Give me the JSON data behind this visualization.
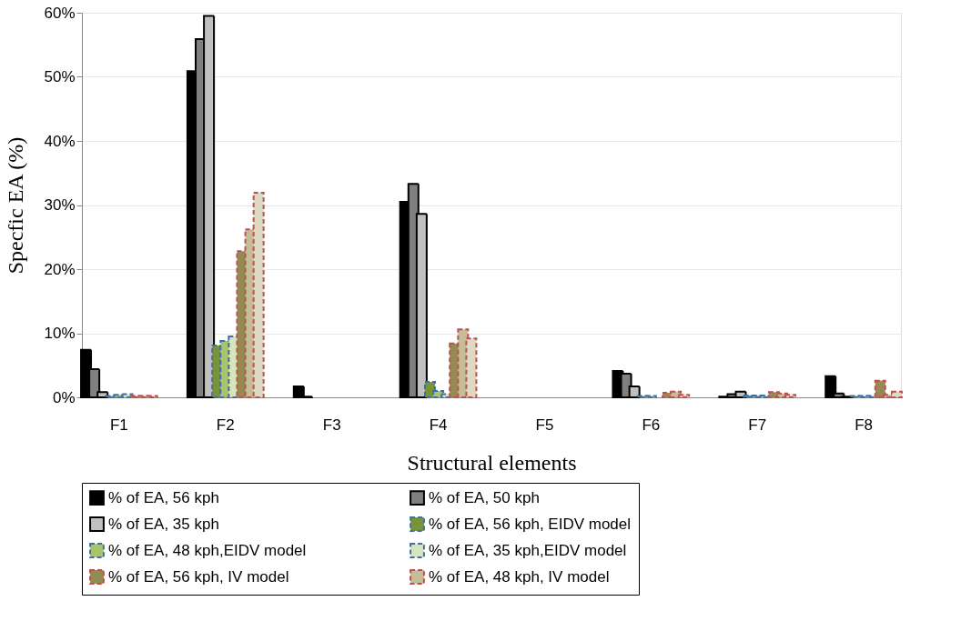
{
  "chart_data": {
    "type": "bar",
    "xlabel": "Structural elements",
    "ylabel": "Specfic EA (%)",
    "categories": [
      "F1",
      "F2",
      "F3",
      "F4",
      "F5",
      "F6",
      "F7",
      "F8"
    ],
    "series": [
      {
        "name": "% of EA, 56 kph",
        "color": "#000000",
        "line_style": "solid",
        "values": [
          7.4,
          50.9,
          1.7,
          30.5,
          0,
          4.1,
          0.1,
          3.3
        ]
      },
      {
        "name": "% of EA, 50 kph",
        "color": "#808080",
        "line_style": "solid",
        "values": [
          4.4,
          55.9,
          0.1,
          33.3,
          0,
          3.7,
          0.5,
          0.6
        ]
      },
      {
        "name": "% of EA, 35 kph",
        "color": "#c0c0c0",
        "line_style": "solid",
        "values": [
          0.8,
          59.5,
          0,
          28.6,
          0,
          1.7,
          0.9,
          0.1
        ]
      },
      {
        "name": "% of EA, 56 kph, EIDV model",
        "color": "#77933c",
        "line_style": "dashed",
        "values": [
          0.2,
          8.1,
          0,
          2.4,
          0,
          0.2,
          0.3,
          0.2
        ]
      },
      {
        "name": "% of EA, 48 kph,EIDV model",
        "color": "#a9c56c",
        "line_style": "dashed",
        "values": [
          0.4,
          8.8,
          0,
          1.0,
          0,
          0.2,
          0.3,
          0.2
        ]
      },
      {
        "name": "% of EA, 35 kph,EIDV model",
        "color": "#d7e4bd",
        "line_style": "dashed",
        "values": [
          0.5,
          9.5,
          0,
          0.5,
          0,
          0,
          0.3,
          0.2
        ]
      },
      {
        "name": "% of EA, 56 kph, IV model",
        "color": "#948a54",
        "line_style": "dashed",
        "values": [
          0.2,
          22.8,
          0,
          8.4,
          0,
          0.7,
          0.8,
          2.6
        ]
      },
      {
        "name": "% of EA, 48 kph, IV model",
        "color": "#c4bd97",
        "line_style": "dashed",
        "values": [
          0.2,
          26.2,
          0,
          10.6,
          0,
          0.9,
          0.6,
          0.4
        ]
      },
      {
        "color": "#ddd9c3",
        "line_style": "dashed",
        "values": [
          0.2,
          31.9,
          0,
          9.2,
          0,
          0.4,
          0.4,
          0.9
        ]
      }
    ],
    "ylim": [
      0,
      60
    ],
    "yticks": [
      {
        "value": 0,
        "label": "0%"
      },
      {
        "value": 10,
        "label": "10%"
      },
      {
        "value": 20,
        "label": "20%"
      },
      {
        "value": 30,
        "label": "30%"
      },
      {
        "value": 40,
        "label": "40%"
      },
      {
        "value": 50,
        "label": "50%"
      },
      {
        "value": 60,
        "label": "60%"
      }
    ],
    "grid": "y",
    "legend": "bottom"
  }
}
